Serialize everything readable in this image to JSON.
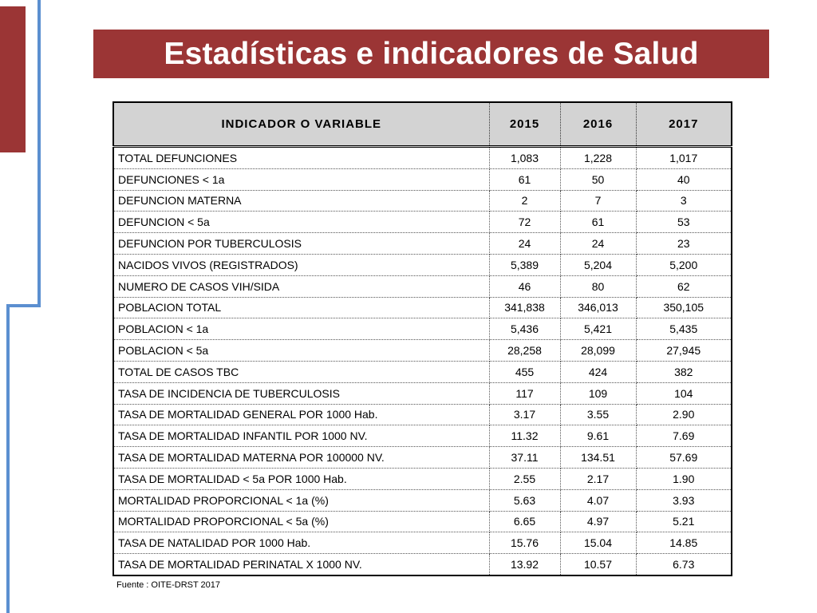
{
  "title": "Estadísticas e indicadores de Salud",
  "table": {
    "headers": [
      "INDICADOR O VARIABLE",
      "2015",
      "2016",
      "2017"
    ],
    "rows": [
      [
        "TOTAL DEFUNCIONES",
        "1,083",
        "1,228",
        "1,017"
      ],
      [
        "DEFUNCIONES < 1a",
        "61",
        "50",
        "40"
      ],
      [
        "DEFUNCION MATERNA",
        "2",
        "7",
        "3"
      ],
      [
        "DEFUNCION < 5a",
        "72",
        "61",
        "53"
      ],
      [
        "DEFUNCION POR TUBERCULOSIS",
        "24",
        "24",
        "23"
      ],
      [
        "NACIDOS VIVOS (REGISTRADOS)",
        "5,389",
        "5,204",
        "5,200"
      ],
      [
        "NUMERO DE CASOS VIH/SIDA",
        "46",
        "80",
        "62"
      ],
      [
        "POBLACION TOTAL",
        "341,838",
        "346,013",
        "350,105"
      ],
      [
        "POBLACION < 1a",
        "5,436",
        "5,421",
        "5,435"
      ],
      [
        "POBLACION < 5a",
        "28,258",
        "28,099",
        "27,945"
      ],
      [
        "TOTAL DE CASOS TBC",
        "455",
        "424",
        "382"
      ],
      [
        "TASA DE INCIDENCIA DE TUBERCULOSIS",
        "117",
        "109",
        "104"
      ],
      [
        "TASA DE MORTALIDAD GENERAL POR 1000 Hab.",
        "3.17",
        "3.55",
        "2.90"
      ],
      [
        "TASA DE MORTALIDAD INFANTIL POR 1000 NV.",
        "11.32",
        "9.61",
        "7.69"
      ],
      [
        "TASA DE MORTALIDAD MATERNA POR 100000 NV.",
        "37.11",
        "134.51",
        "57.69"
      ],
      [
        "TASA DE MORTALIDAD < 5a POR 1000 Hab.",
        "2.55",
        "2.17",
        "1.90"
      ],
      [
        "MORTALIDAD PROPORCIONAL < 1a (%)",
        "5.63",
        "4.07",
        "3.93"
      ],
      [
        "MORTALIDAD PROPORCIONAL < 5a (%)",
        "6.65",
        "4.97",
        "5.21"
      ],
      [
        "TASA DE NATALIDAD POR 1000 Hab.",
        "15.76",
        "15.04",
        "14.85"
      ],
      [
        "TASA DE MORTALIDAD PERINATAL X 1000 NV.",
        "13.92",
        "10.57",
        "6.73"
      ]
    ]
  },
  "source": "Fuente : OITE-DRST 2017",
  "colors": {
    "accent": "#9b3535",
    "line": "#5b8fd0",
    "header_bg": "#d3d3d3"
  }
}
